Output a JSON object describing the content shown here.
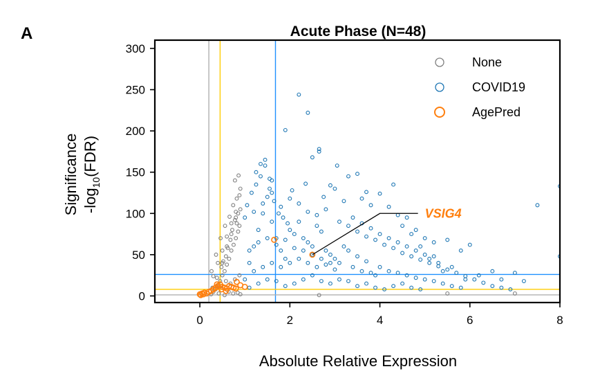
{
  "figure": {
    "panel_label": "A"
  },
  "chart_data": {
    "type": "scatter",
    "title": "Acute Phase (N=48)",
    "xlabel": "Absolute Relative Expression",
    "ylabel_line1": "Significance",
    "ylabel_line2_prefix": "-log",
    "ylabel_line2_sub": "10",
    "ylabel_line2_suffix": "(FDR)",
    "xlim": [
      -1,
      8
    ],
    "ylim": [
      -8,
      310
    ],
    "xticks": [
      0,
      2,
      4,
      6,
      8
    ],
    "yticks": [
      0,
      50,
      100,
      150,
      200,
      250,
      300
    ],
    "legend_position": "top-right",
    "colors": {
      "None": "#808080",
      "COVID19": "#1f77b4",
      "AgePred": "#ff7f0e",
      "vline_grey": "#b0b0b0",
      "vline_yellow": "#ffcc00",
      "vline_blue": "#1e90ff"
    },
    "reference_lines": {
      "vertical": [
        {
          "x": 0.2,
          "color": "vline_grey"
        },
        {
          "x": 0.45,
          "color": "vline_yellow"
        },
        {
          "x": 1.68,
          "color": "vline_blue"
        }
      ],
      "horizontal": [
        {
          "y": 1.3,
          "color": "vline_grey"
        },
        {
          "y": 8,
          "color": "vline_yellow"
        },
        {
          "y": 26,
          "color": "vline_blue"
        }
      ]
    },
    "series": [
      {
        "name": "None",
        "points": [
          [
            0.25,
            2
          ],
          [
            0.3,
            5
          ],
          [
            0.35,
            8
          ],
          [
            0.4,
            12
          ],
          [
            0.45,
            18
          ],
          [
            0.5,
            25
          ],
          [
            0.55,
            30
          ],
          [
            0.6,
            38
          ],
          [
            0.65,
            45
          ],
          [
            0.7,
            55
          ],
          [
            0.75,
            62
          ],
          [
            0.8,
            70
          ],
          [
            0.85,
            78
          ],
          [
            0.88,
            85
          ],
          [
            0.5,
            40
          ],
          [
            0.6,
            60
          ],
          [
            0.7,
            75
          ],
          [
            0.8,
            95
          ],
          [
            0.85,
            100
          ],
          [
            0.9,
            105
          ],
          [
            0.78,
            92
          ],
          [
            0.68,
            68
          ],
          [
            0.58,
            48
          ],
          [
            0.48,
            35
          ],
          [
            0.38,
            22
          ],
          [
            0.28,
            10
          ],
          [
            0.72,
            80
          ],
          [
            0.82,
            88
          ],
          [
            0.62,
            58
          ],
          [
            0.52,
            42
          ],
          [
            0.86,
            146
          ],
          [
            0.78,
            140
          ],
          [
            0.9,
            130
          ],
          [
            0.82,
            118
          ],
          [
            0.74,
            110
          ],
          [
            0.66,
            96
          ],
          [
            0.56,
            85
          ],
          [
            0.46,
            70
          ],
          [
            0.36,
            50
          ],
          [
            0.26,
            30
          ],
          [
            0.88,
            122
          ],
          [
            0.8,
            102
          ],
          [
            0.7,
            88
          ],
          [
            0.6,
            72
          ],
          [
            0.5,
            55
          ],
          [
            0.4,
            40
          ],
          [
            0.3,
            24
          ],
          [
            0.64,
            5
          ],
          [
            0.74,
            3
          ],
          [
            0.84,
            4
          ],
          [
            0.9,
            2
          ],
          [
            0.55,
            1
          ],
          [
            0.42,
            3
          ],
          [
            0.68,
            15
          ],
          [
            0.78,
            20
          ],
          [
            0.88,
            25
          ],
          [
            0.58,
            18
          ],
          [
            0.48,
            12
          ],
          [
            2.65,
            1
          ],
          [
            5.5,
            3
          ],
          [
            7.0,
            3
          ]
        ]
      },
      {
        "name": "COVID19",
        "points": [
          [
            1.0,
            20
          ],
          [
            1.1,
            40
          ],
          [
            1.2,
            60
          ],
          [
            1.3,
            80
          ],
          [
            1.4,
            100
          ],
          [
            1.5,
            120
          ],
          [
            1.6,
            90
          ],
          [
            1.7,
            70
          ],
          [
            1.8,
            55
          ],
          [
            1.9,
            45
          ],
          [
            1.05,
            110
          ],
          [
            1.15,
            125
          ],
          [
            1.25,
            135
          ],
          [
            1.35,
            145
          ],
          [
            1.45,
            165
          ],
          [
            1.55,
            130
          ],
          [
            1.65,
            115
          ],
          [
            1.75,
            100
          ],
          [
            1.85,
            95
          ],
          [
            1.95,
            88
          ],
          [
            2.0,
            80
          ],
          [
            2.1,
            75
          ],
          [
            2.2,
            90
          ],
          [
            2.3,
            70
          ],
          [
            2.4,
            65
          ],
          [
            2.5,
            60
          ],
          [
            2.6,
            85
          ],
          [
            2.7,
            78
          ],
          [
            2.8,
            55
          ],
          [
            2.9,
            50
          ],
          [
            3.0,
            45
          ],
          [
            3.1,
            40
          ],
          [
            3.2,
            60
          ],
          [
            3.3,
            55
          ],
          [
            3.4,
            35
          ],
          [
            3.5,
            48
          ],
          [
            3.6,
            30
          ],
          [
            3.7,
            42
          ],
          [
            3.8,
            28
          ],
          [
            3.9,
            25
          ],
          [
            2.2,
            244
          ],
          [
            2.4,
            222
          ],
          [
            1.9,
            201
          ],
          [
            2.65,
            178
          ],
          [
            2.65,
            175
          ],
          [
            3.05,
            158
          ],
          [
            2.5,
            168
          ],
          [
            3.5,
            148
          ],
          [
            3.3,
            145
          ],
          [
            3.0,
            130
          ],
          [
            2.9,
            134
          ],
          [
            3.7,
            126
          ],
          [
            4.0,
            124
          ],
          [
            4.3,
            135
          ],
          [
            3.8,
            110
          ],
          [
            4.2,
            108
          ],
          [
            4.4,
            98
          ],
          [
            4.6,
            95
          ],
          [
            4.8,
            80
          ],
          [
            5.0,
            70
          ],
          [
            5.2,
            65
          ],
          [
            5.5,
            68
          ],
          [
            5.8,
            55
          ],
          [
            6.0,
            62
          ],
          [
            6.5,
            30
          ],
          [
            7.0,
            28
          ],
          [
            7.5,
            110
          ],
          [
            8.0,
            133
          ],
          [
            8.0,
            48
          ],
          [
            4.5,
            85
          ],
          [
            4.7,
            75
          ],
          [
            4.9,
            60
          ],
          [
            5.1,
            45
          ],
          [
            5.3,
            40
          ],
          [
            5.6,
            35
          ],
          [
            5.9,
            20
          ],
          [
            6.2,
            25
          ],
          [
            6.7,
            20
          ],
          [
            7.2,
            18
          ],
          [
            5.4,
            30
          ],
          [
            1.1,
            10
          ],
          [
            1.3,
            15
          ],
          [
            1.5,
            20
          ],
          [
            1.7,
            18
          ],
          [
            1.9,
            12
          ],
          [
            2.1,
            15
          ],
          [
            2.3,
            20
          ],
          [
            2.5,
            25
          ],
          [
            2.7,
            18
          ],
          [
            2.9,
            15
          ],
          [
            3.1,
            20
          ],
          [
            3.3,
            18
          ],
          [
            3.5,
            12
          ],
          [
            3.7,
            15
          ],
          [
            3.9,
            10
          ],
          [
            4.1,
            8
          ],
          [
            4.3,
            12
          ],
          [
            4.5,
            15
          ],
          [
            4.7,
            10
          ],
          [
            4.9,
            8
          ],
          [
            1.0,
            95
          ],
          [
            1.2,
            102
          ],
          [
            1.4,
            112
          ],
          [
            1.6,
            125
          ],
          [
            1.8,
            108
          ],
          [
            2.0,
            118
          ],
          [
            2.2,
            112
          ],
          [
            2.4,
            102
          ],
          [
            2.6,
            98
          ],
          [
            2.8,
            105
          ],
          [
            1.35,
            160
          ],
          [
            1.45,
            158
          ],
          [
            1.6,
            140
          ],
          [
            1.25,
            150
          ],
          [
            1.55,
            142
          ],
          [
            2.05,
            128
          ],
          [
            2.35,
            136
          ],
          [
            2.75,
            120
          ],
          [
            3.2,
            115
          ],
          [
            3.6,
            118
          ],
          [
            3.1,
            90
          ],
          [
            3.3,
            85
          ],
          [
            3.5,
            78
          ],
          [
            3.7,
            72
          ],
          [
            3.9,
            68
          ],
          [
            4.1,
            62
          ],
          [
            4.3,
            58
          ],
          [
            4.5,
            52
          ],
          [
            4.7,
            48
          ],
          [
            4.9,
            44
          ],
          [
            5.1,
            40
          ],
          [
            5.3,
            36
          ],
          [
            5.5,
            32
          ],
          [
            5.7,
            28
          ],
          [
            5.9,
            24
          ],
          [
            6.1,
            20
          ],
          [
            6.3,
            16
          ],
          [
            6.5,
            12
          ],
          [
            6.7,
            10
          ],
          [
            6.9,
            8
          ],
          [
            1.2,
            30
          ],
          [
            1.4,
            35
          ],
          [
            1.6,
            40
          ],
          [
            1.8,
            35
          ],
          [
            2.0,
            40
          ],
          [
            2.2,
            45
          ],
          [
            2.4,
            40
          ],
          [
            2.6,
            35
          ],
          [
            2.8,
            38
          ],
          [
            3.0,
            32
          ],
          [
            1.1,
            55
          ],
          [
            1.3,
            65
          ],
          [
            1.5,
            70
          ],
          [
            1.7,
            62
          ],
          [
            1.9,
            68
          ],
          [
            2.1,
            58
          ],
          [
            2.3,
            55
          ],
          [
            2.5,
            50
          ],
          [
            2.7,
            45
          ],
          [
            2.9,
            40
          ],
          [
            4.0,
            35
          ],
          [
            4.2,
            30
          ],
          [
            4.4,
            28
          ],
          [
            4.6,
            25
          ],
          [
            4.8,
            22
          ],
          [
            5.0,
            20
          ],
          [
            5.2,
            18
          ],
          [
            5.4,
            15
          ],
          [
            5.6,
            12
          ],
          [
            5.8,
            10
          ],
          [
            3.4,
            95
          ],
          [
            3.6,
            88
          ],
          [
            3.8,
            82
          ],
          [
            4.0,
            75
          ],
          [
            4.2,
            70
          ],
          [
            4.4,
            65
          ],
          [
            4.6,
            60
          ],
          [
            4.8,
            55
          ],
          [
            5.0,
            50
          ],
          [
            5.2,
            48
          ]
        ]
      },
      {
        "name": "AgePred",
        "points": [
          [
            0.0,
            2
          ],
          [
            0.02,
            1
          ],
          [
            0.05,
            3
          ],
          [
            0.08,
            2
          ],
          [
            0.1,
            4
          ],
          [
            0.15,
            3
          ],
          [
            0.2,
            5
          ],
          [
            0.25,
            6
          ],
          [
            0.3,
            8
          ],
          [
            0.35,
            10
          ],
          [
            0.4,
            12
          ],
          [
            0.45,
            14
          ],
          [
            0.5,
            11
          ],
          [
            0.55,
            10
          ],
          [
            0.6,
            9
          ],
          [
            0.65,
            12
          ],
          [
            0.7,
            11
          ],
          [
            0.75,
            10
          ],
          [
            0.8,
            9
          ],
          [
            0.82,
            17
          ],
          [
            0.9,
            13
          ],
          [
            1.0,
            11
          ],
          [
            0.38,
            14
          ],
          [
            0.48,
            8
          ],
          [
            0.58,
            6
          ],
          [
            1.65,
            68
          ],
          [
            2.5,
            50
          ]
        ]
      }
    ],
    "annotation": {
      "label": "VSIG4",
      "point": [
        2.5,
        50
      ],
      "label_pos": [
        5.0,
        100
      ],
      "elbow": [
        4.0,
        100
      ]
    }
  }
}
